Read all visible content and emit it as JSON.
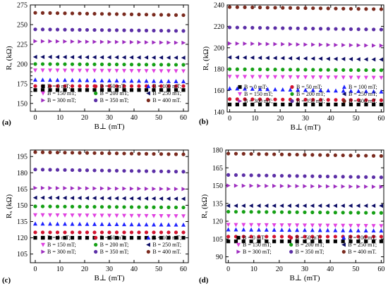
{
  "chart_data": [
    {
      "type": "scatter",
      "panel_label": "(a)",
      "xlabel": "B⊥ (mT)",
      "ylabel": "Rₓ (kΩ)",
      "xlim": [
        -2,
        62
      ],
      "ylim": [
        140,
        275
      ],
      "xticks": [
        0,
        10,
        20,
        30,
        40,
        50,
        60
      ],
      "yticks": [
        150,
        175,
        200,
        225,
        250,
        275
      ],
      "yticks_minor": [
        160,
        165,
        170,
        180,
        185,
        190,
        195
      ],
      "x": [
        0,
        3,
        6,
        9,
        12,
        15,
        18,
        21,
        24,
        27,
        30,
        33,
        36,
        39,
        42,
        45,
        48,
        51,
        54,
        57,
        60
      ],
      "series": [
        {
          "name": "B = 0 mT;",
          "color": "#000000",
          "marker": "square",
          "y0": 167,
          "y1": 167
        },
        {
          "name": "B = 50 mT;",
          "color": "#d2122e",
          "marker": "circle",
          "y0": 172,
          "y1": 172
        },
        {
          "name": "B = 100 mT;",
          "color": "#1e22ff",
          "marker": "triangle-up",
          "y0": 180,
          "y1": 178
        },
        {
          "name": "B = 150 mT;",
          "color": "#e040e0",
          "marker": "triangle-down",
          "y0": 192,
          "y1": 191
        },
        {
          "name": "B = 200 mT;",
          "color": "#15a015",
          "marker": "circle",
          "y0": 200,
          "y1": 199
        },
        {
          "name": "B = 250 mT;",
          "color": "#0a0a64",
          "marker": "triangle-left",
          "y0": 209,
          "y1": 208
        },
        {
          "name": "B = 300 mT;",
          "color": "#9d2cbf",
          "marker": "triangle-right",
          "y0": 229,
          "y1": 227
        },
        {
          "name": "B = 350 mT;",
          "color": "#5b2ea6",
          "marker": "circle",
          "y0": 244,
          "y1": 242
        },
        {
          "name": "B = 400 mT.",
          "color": "#7a2a1e",
          "marker": "circle",
          "y0": 265,
          "y1": 262
        }
      ]
    },
    {
      "type": "scatter",
      "panel_label": "(b)",
      "xlabel": "B⊥ (mT)",
      "ylabel": "Rₓ (kΩ)",
      "xlim": [
        -1,
        61
      ],
      "ylim": [
        140,
        240
      ],
      "xticks": [
        0,
        10,
        20,
        30,
        40,
        50,
        60
      ],
      "yticks": [
        140,
        160,
        180,
        200,
        220,
        240
      ],
      "yticks_minor": [],
      "x": [
        0,
        3,
        6,
        9,
        12,
        15,
        18,
        21,
        24,
        27,
        30,
        33,
        36,
        39,
        42,
        45,
        48,
        51,
        54,
        57,
        60
      ],
      "series": [
        {
          "name": "B = 0 mT;",
          "color": "#000000",
          "marker": "square",
          "y0": 147,
          "y1": 147
        },
        {
          "name": "B = 50 mT;",
          "color": "#d2122e",
          "marker": "circle",
          "y0": 152,
          "y1": 151
        },
        {
          "name": "B = 100 mT;",
          "color": "#1e22ff",
          "marker": "triangle-up",
          "y0": 162,
          "y1": 159
        },
        {
          "name": "B = 150 mT;",
          "color": "#e040e0",
          "marker": "triangle-down",
          "y0": 173,
          "y1": 172
        },
        {
          "name": "B = 200 mT;",
          "color": "#15a015",
          "marker": "circle",
          "y0": 180,
          "y1": 179
        },
        {
          "name": "B = 250 mT;",
          "color": "#0a0a64",
          "marker": "triangle-left",
          "y0": 191,
          "y1": 189
        },
        {
          "name": "B = 300 mT;",
          "color": "#9d2cbf",
          "marker": "triangle-right",
          "y0": 204,
          "y1": 202
        },
        {
          "name": "B = 350 mT;",
          "color": "#5b2ea6",
          "marker": "circle",
          "y0": 219,
          "y1": 217
        },
        {
          "name": "B = 400 mT.",
          "color": "#7a2a1e",
          "marker": "circle",
          "y0": 238,
          "y1": 236
        }
      ]
    },
    {
      "type": "scatter",
      "panel_label": "(c)",
      "xlabel": "B⊥ (mT)",
      "ylabel": "Rₓ (kΩ)",
      "xlim": [
        -2,
        62
      ],
      "ylim": [
        97,
        201
      ],
      "xticks": [
        0,
        10,
        20,
        30,
        40,
        50,
        60
      ],
      "yticks": [
        105,
        120,
        135,
        150,
        165,
        180,
        195
      ],
      "yticks_minor": [],
      "x": [
        0,
        3,
        6,
        9,
        12,
        15,
        18,
        21,
        24,
        27,
        30,
        33,
        36,
        39,
        42,
        45,
        48,
        51,
        54,
        57,
        60
      ],
      "series": [
        {
          "name": "B = 0 mT;",
          "color": "#000000",
          "marker": "square",
          "y0": 120,
          "y1": 120
        },
        {
          "name": "B = 50 mT;",
          "color": "#d2122e",
          "marker": "circle",
          "y0": 125,
          "y1": 125
        },
        {
          "name": "B = 100 mT;",
          "color": "#1e22ff",
          "marker": "triangle-up",
          "y0": 133,
          "y1": 132
        },
        {
          "name": "B = 150 mT;",
          "color": "#e040e0",
          "marker": "triangle-down",
          "y0": 141,
          "y1": 140
        },
        {
          "name": "B = 200 mT;",
          "color": "#15a015",
          "marker": "circle",
          "y0": 149,
          "y1": 148
        },
        {
          "name": "B = 250 mT;",
          "color": "#0a0a64",
          "marker": "triangle-left",
          "y0": 157,
          "y1": 156
        },
        {
          "name": "B = 300 mT;",
          "color": "#9d2cbf",
          "marker": "triangle-right",
          "y0": 166,
          "y1": 165
        },
        {
          "name": "B = 350 mT;",
          "color": "#5b2ea6",
          "marker": "circle",
          "y0": 183,
          "y1": 181
        },
        {
          "name": "B = 400 mT.",
          "color": "#7a2a1e",
          "marker": "circle",
          "y0": 199,
          "y1": 197
        }
      ]
    },
    {
      "type": "scatter",
      "panel_label": "(d)",
      "xlabel": "B⊥ (mT)",
      "ylabel": "Rₓ (kΩ)",
      "xlim": [
        -1,
        61
      ],
      "ylim": [
        85,
        180
      ],
      "xticks": [
        0,
        10,
        20,
        30,
        40,
        50,
        60
      ],
      "yticks": [
        90,
        105,
        120,
        135,
        150,
        165,
        180
      ],
      "yticks_minor": [],
      "x": [
        0,
        3,
        6,
        9,
        12,
        15,
        18,
        21,
        24,
        27,
        30,
        33,
        36,
        39,
        42,
        45,
        48,
        51,
        54,
        57,
        60
      ],
      "series": [
        {
          "name": "B = 0 mT;",
          "color": "#000000",
          "marker": "square",
          "y0": 103,
          "y1": 103
        },
        {
          "name": "B = 50 mT;",
          "color": "#d2122e",
          "marker": "circle",
          "y0": 107,
          "y1": 107
        },
        {
          "name": "B = 100 mT;",
          "color": "#1e22ff",
          "marker": "triangle-up",
          "y0": 113,
          "y1": 112
        },
        {
          "name": "B = 150 mT;",
          "color": "#e040e0",
          "marker": "triangle-down",
          "y0": 117,
          "y1": 116
        },
        {
          "name": "B = 200 mT;",
          "color": "#15a015",
          "marker": "circle",
          "y0": 128,
          "y1": 127
        },
        {
          "name": "B = 250 mT;",
          "color": "#0a0a64",
          "marker": "triangle-left",
          "y0": 133,
          "y1": 133
        },
        {
          "name": "B = 300 mT;",
          "color": "#9d2cbf",
          "marker": "triangle-right",
          "y0": 150,
          "y1": 149
        },
        {
          "name": "B = 350 mT;",
          "color": "#5b2ea6",
          "marker": "circle",
          "y0": 159,
          "y1": 157
        },
        {
          "name": "B = 400 mT.",
          "color": "#7a2a1e",
          "marker": "circle",
          "y0": 177,
          "y1": 175
        }
      ]
    }
  ]
}
